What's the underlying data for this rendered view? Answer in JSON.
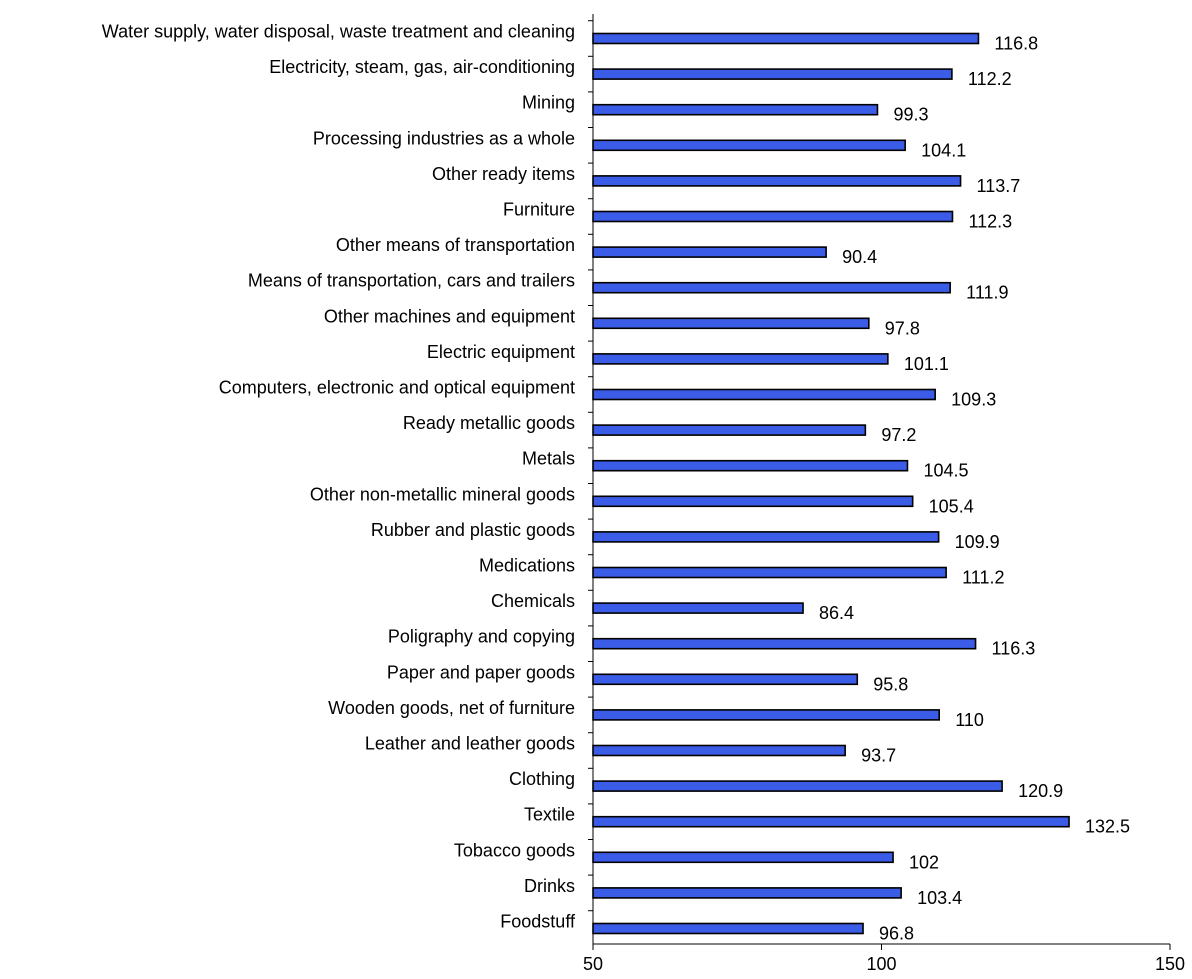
{
  "chart_data": {
    "type": "bar",
    "orientation": "horizontal",
    "title": "",
    "xlabel": "",
    "ylabel": "",
    "xlim": [
      50,
      150
    ],
    "xticks": [
      50,
      100,
      150
    ],
    "grid": false,
    "legend": "none",
    "bar_color": "#3b5ce6",
    "bar_outline": "#000000",
    "categories": [
      "Water supply, water disposal, waste treatment and cleaning",
      "Electricity, steam, gas, air-conditioning",
      "Mining",
      "Processing industries as a whole",
      "Other ready items",
      "Furniture",
      "Other means of transportation",
      "Means of transportation, cars and trailers",
      "Other machines and equipment",
      "Electric equipment",
      "Computers, electronic and optical equipment",
      "Ready metallic goods",
      "Metals",
      "Other non-metallic mineral goods",
      "Rubber and plastic goods",
      "Medications",
      "Chemicals",
      "Poligraphy and copying",
      "Paper and paper goods",
      "Wooden goods, net of furniture",
      "Leather and leather goods",
      "Clothing",
      "Textile",
      "Tobacco goods",
      "Drinks",
      "Foodstuff"
    ],
    "values": [
      116.8,
      112.2,
      99.3,
      104.1,
      113.7,
      112.3,
      90.4,
      111.9,
      97.8,
      101.1,
      109.3,
      97.2,
      104.5,
      105.4,
      109.9,
      111.2,
      86.4,
      116.3,
      95.8,
      110,
      93.7,
      120.9,
      132.5,
      102,
      103.4,
      96.8
    ],
    "value_labels": [
      "116.8",
      "112.2",
      "99.3",
      "104.1",
      "113.7",
      "112.3",
      "90.4",
      "111.9",
      "97.8",
      "101.1",
      "109.3",
      "97.2",
      "104.5",
      "105.4",
      "109.9",
      "111.2",
      "86.4",
      "116.3",
      "95.8",
      "110",
      "93.7",
      "120.9",
      "132.5",
      "102",
      "103.4",
      "96.8"
    ]
  }
}
